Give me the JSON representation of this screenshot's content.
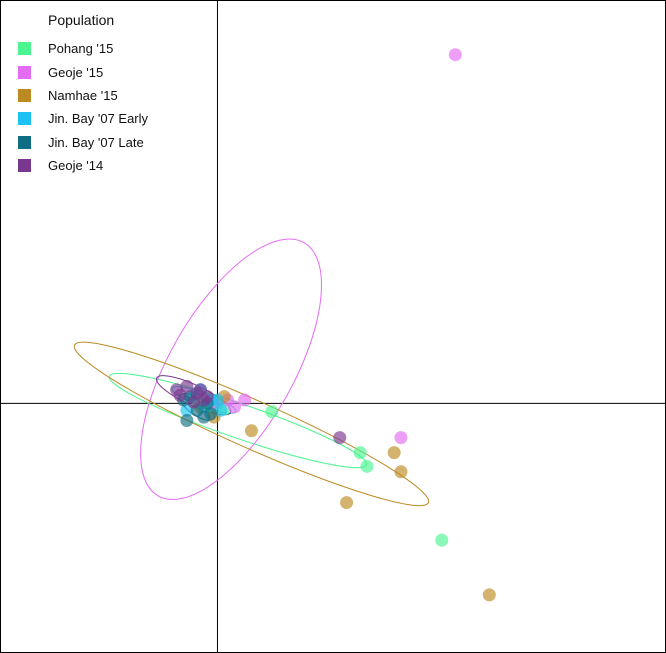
{
  "chart_data": {
    "type": "scatter",
    "title": "",
    "xlabel": "",
    "ylabel": "",
    "xlim": [
      -3.2,
      6.6
    ],
    "ylim": [
      -3.65,
      5.9
    ],
    "legend": {
      "title": "Population",
      "position": "top-left"
    },
    "series": [
      {
        "name": "Pohang '15",
        "color": "#4CF58F",
        "points": [
          [
            0.8,
            -0.12
          ],
          [
            2.1,
            -0.72
          ],
          [
            2.2,
            -0.92
          ],
          [
            3.3,
            -2.0
          ],
          [
            -0.1,
            -0.05
          ],
          [
            0.1,
            -0.08
          ],
          [
            -0.3,
            0.05
          ],
          [
            0.0,
            0.0
          ]
        ],
        "ellipse": {
          "cx": 0.3,
          "cy": -0.25,
          "rx": 2.0,
          "ry": 0.25,
          "angle_deg": 19
        }
      },
      {
        "name": "Geoje '15",
        "color": "#E46CF4",
        "points": [
          [
            3.5,
            5.1
          ],
          [
            2.7,
            -0.5
          ],
          [
            0.4,
            0.05
          ],
          [
            0.25,
            -0.05
          ],
          [
            -0.05,
            0.0
          ],
          [
            0.15,
            0.05
          ]
        ],
        "ellipse": {
          "cx": 0.2,
          "cy": 0.5,
          "rx": 2.15,
          "ry": 0.9,
          "angle_deg": -60
        }
      },
      {
        "name": "Namhae '15",
        "color": "#BB8A20",
        "points": [
          [
            0.5,
            -0.4
          ],
          [
            2.6,
            -0.72
          ],
          [
            2.7,
            -1.0
          ],
          [
            1.9,
            -1.45
          ],
          [
            4.0,
            -2.8
          ],
          [
            -0.05,
            -0.2
          ],
          [
            0.1,
            0.1
          ],
          [
            -0.25,
            -0.05
          ]
        ],
        "ellipse": {
          "cx": 0.5,
          "cy": -0.3,
          "rx": 2.85,
          "ry": 0.35,
          "angle_deg": 24
        }
      },
      {
        "name": "Jin. Bay '07 Early",
        "color": "#1CC3F2",
        "points": [
          [
            -0.35,
            0.1
          ],
          [
            -0.2,
            -0.05
          ],
          [
            -0.1,
            0.05
          ],
          [
            0.05,
            -0.1
          ],
          [
            -0.45,
            -0.1
          ],
          [
            -0.25,
            0.2
          ],
          [
            0.0,
            0.05
          ]
        ],
        "ellipse": {
          "cx": -0.2,
          "cy": 0.05,
          "rx": 0.5,
          "ry": 0.1,
          "angle_deg": 20
        }
      },
      {
        "name": "Jin. Bay '07 Late",
        "color": "#106E84",
        "points": [
          [
            -0.45,
            -0.25
          ],
          [
            -0.3,
            -0.1
          ],
          [
            -0.5,
            0.05
          ],
          [
            -0.2,
            -0.2
          ],
          [
            -0.4,
            0.1
          ],
          [
            -0.1,
            -0.15
          ],
          [
            -0.15,
            0.0
          ]
        ],
        "ellipse": {
          "cx": -0.3,
          "cy": -0.05,
          "rx": 0.3,
          "ry": 0.12,
          "angle_deg": 35
        }
      },
      {
        "name": "Geoje '14",
        "color": "#79378D",
        "points": [
          [
            1.8,
            -0.5
          ],
          [
            -0.6,
            0.2
          ],
          [
            -0.45,
            0.25
          ],
          [
            -0.3,
            0.15
          ],
          [
            -0.2,
            0.05
          ],
          [
            -0.55,
            0.12
          ],
          [
            -0.25,
            0.2
          ],
          [
            -0.35,
            0.02
          ],
          [
            -0.15,
            0.1
          ]
        ],
        "ellipse": {
          "cx": -0.35,
          "cy": 0.12,
          "rx": 0.6,
          "ry": 0.15,
          "angle_deg": 25
        }
      }
    ]
  }
}
